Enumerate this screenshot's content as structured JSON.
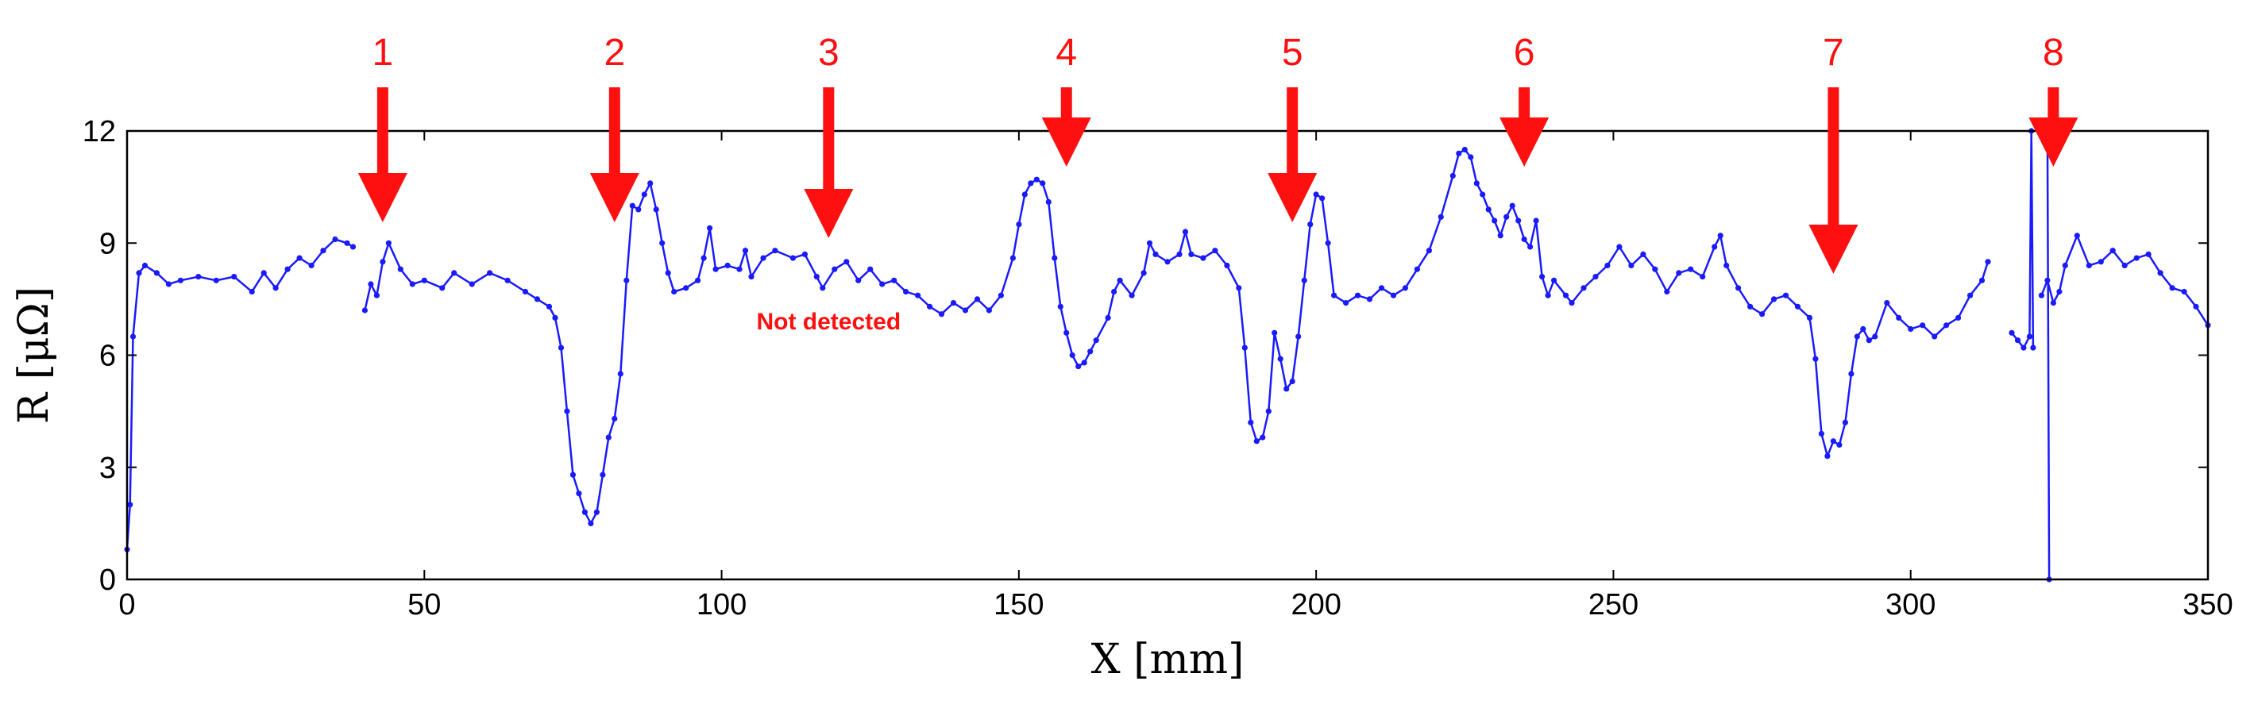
{
  "chart_data": {
    "type": "line",
    "xlabel": "X [mm]",
    "ylabel": "R [μΩ]",
    "xlim": [
      0,
      350
    ],
    "ylim": [
      0,
      12
    ],
    "xticks": [
      0,
      50,
      100,
      150,
      200,
      250,
      300,
      350
    ],
    "yticks": [
      0,
      3,
      6,
      9,
      12
    ],
    "grid": false,
    "line_color": "#1a1aff",
    "series": [
      {
        "segments": [
          [
            [
              0,
              0.8
            ],
            [
              0.5,
              2.0
            ],
            [
              1,
              6.5
            ],
            [
              2,
              8.2
            ],
            [
              3,
              8.4
            ],
            [
              5,
              8.2
            ],
            [
              7,
              7.9
            ],
            [
              9,
              8.0
            ],
            [
              12,
              8.1
            ],
            [
              15,
              8.0
            ],
            [
              18,
              8.1
            ],
            [
              21,
              7.7
            ],
            [
              23,
              8.2
            ],
            [
              25,
              7.8
            ],
            [
              27,
              8.3
            ],
            [
              29,
              8.6
            ],
            [
              31,
              8.4
            ],
            [
              33,
              8.8
            ],
            [
              35,
              9.1
            ],
            [
              37,
              9.0
            ],
            [
              38,
              8.9
            ]
          ],
          [
            [
              40,
              7.2
            ],
            [
              41,
              7.9
            ],
            [
              42,
              7.6
            ],
            [
              43,
              8.5
            ],
            [
              44,
              9.0
            ],
            [
              46,
              8.3
            ],
            [
              48,
              7.9
            ],
            [
              50,
              8.0
            ],
            [
              53,
              7.8
            ],
            [
              55,
              8.2
            ],
            [
              58,
              7.9
            ],
            [
              61,
              8.2
            ],
            [
              64,
              8.0
            ],
            [
              67,
              7.7
            ],
            [
              69,
              7.5
            ],
            [
              71,
              7.3
            ],
            [
              72,
              7.0
            ],
            [
              73,
              6.2
            ],
            [
              74,
              4.5
            ],
            [
              75,
              2.8
            ],
            [
              76,
              2.3
            ],
            [
              77,
              1.8
            ],
            [
              78,
              1.5
            ],
            [
              79,
              1.8
            ],
            [
              80,
              2.8
            ],
            [
              81,
              3.8
            ],
            [
              82,
              4.3
            ],
            [
              83,
              5.5
            ],
            [
              84,
              8.0
            ],
            [
              85,
              10.0
            ],
            [
              86,
              9.9
            ],
            [
              87,
              10.3
            ],
            [
              88,
              10.6
            ],
            [
              89,
              9.9
            ],
            [
              90,
              9.0
            ],
            [
              91,
              8.2
            ],
            [
              92,
              7.7
            ],
            [
              94,
              7.8
            ],
            [
              96,
              8.0
            ],
            [
              97,
              8.6
            ],
            [
              98,
              9.4
            ],
            [
              99,
              8.3
            ],
            [
              101,
              8.4
            ],
            [
              103,
              8.3
            ],
            [
              104,
              8.8
            ],
            [
              105,
              8.1
            ],
            [
              107,
              8.6
            ],
            [
              109,
              8.8
            ],
            [
              112,
              8.6
            ],
            [
              114,
              8.7
            ],
            [
              116,
              8.1
            ],
            [
              117,
              7.8
            ],
            [
              119,
              8.3
            ],
            [
              121,
              8.5
            ],
            [
              123,
              8.0
            ],
            [
              125,
              8.3
            ],
            [
              127,
              7.9
            ],
            [
              129,
              8.0
            ],
            [
              131,
              7.7
            ],
            [
              133,
              7.6
            ],
            [
              135,
              7.3
            ],
            [
              137,
              7.1
            ],
            [
              139,
              7.4
            ],
            [
              141,
              7.2
            ],
            [
              143,
              7.5
            ],
            [
              145,
              7.2
            ],
            [
              147,
              7.6
            ],
            [
              149,
              8.6
            ],
            [
              150,
              9.5
            ],
            [
              151,
              10.3
            ],
            [
              152,
              10.6
            ],
            [
              153,
              10.7
            ],
            [
              154,
              10.6
            ],
            [
              155,
              10.1
            ],
            [
              156,
              8.6
            ],
            [
              157,
              7.3
            ],
            [
              158,
              6.6
            ],
            [
              159,
              6.0
            ],
            [
              160,
              5.7
            ],
            [
              161,
              5.8
            ],
            [
              162,
              6.1
            ],
            [
              163,
              6.4
            ],
            [
              165,
              7.0
            ],
            [
              166,
              7.7
            ],
            [
              167,
              8.0
            ],
            [
              169,
              7.6
            ],
            [
              171,
              8.2
            ],
            [
              172,
              9.0
            ],
            [
              173,
              8.7
            ],
            [
              175,
              8.5
            ],
            [
              177,
              8.7
            ],
            [
              178,
              9.3
            ],
            [
              179,
              8.7
            ],
            [
              181,
              8.6
            ],
            [
              183,
              8.8
            ],
            [
              185,
              8.4
            ],
            [
              187,
              7.8
            ],
            [
              188,
              6.2
            ],
            [
              189,
              4.2
            ],
            [
              190,
              3.7
            ],
            [
              191,
              3.8
            ],
            [
              192,
              4.5
            ],
            [
              193,
              6.6
            ],
            [
              194,
              5.9
            ],
            [
              195,
              5.1
            ],
            [
              196,
              5.3
            ],
            [
              197,
              6.5
            ],
            [
              198,
              8.0
            ],
            [
              199,
              9.5
            ],
            [
              200,
              10.3
            ],
            [
              201,
              10.2
            ],
            [
              202,
              9.0
            ],
            [
              203,
              7.6
            ],
            [
              205,
              7.4
            ],
            [
              207,
              7.6
            ],
            [
              209,
              7.5
            ],
            [
              211,
              7.8
            ],
            [
              213,
              7.6
            ],
            [
              215,
              7.8
            ],
            [
              217,
              8.3
            ],
            [
              219,
              8.8
            ],
            [
              221,
              9.7
            ],
            [
              223,
              10.8
            ],
            [
              224,
              11.4
            ],
            [
              225,
              11.5
            ],
            [
              226,
              11.3
            ],
            [
              227,
              10.6
            ],
            [
              228,
              10.3
            ],
            [
              229,
              9.9
            ],
            [
              230,
              9.6
            ],
            [
              231,
              9.2
            ],
            [
              232,
              9.7
            ],
            [
              233,
              10.0
            ],
            [
              234,
              9.6
            ],
            [
              235,
              9.1
            ],
            [
              236,
              8.9
            ],
            [
              237,
              9.6
            ],
            [
              238,
              8.1
            ],
            [
              239,
              7.6
            ],
            [
              240,
              8.0
            ],
            [
              242,
              7.6
            ],
            [
              243,
              7.4
            ],
            [
              245,
              7.8
            ],
            [
              247,
              8.1
            ],
            [
              249,
              8.4
            ],
            [
              251,
              8.9
            ],
            [
              253,
              8.4
            ],
            [
              255,
              8.7
            ],
            [
              257,
              8.3
            ],
            [
              259,
              7.7
            ],
            [
              261,
              8.2
            ],
            [
              263,
              8.3
            ],
            [
              265,
              8.1
            ],
            [
              267,
              8.9
            ],
            [
              268,
              9.2
            ],
            [
              269,
              8.4
            ],
            [
              271,
              7.8
            ],
            [
              273,
              7.3
            ],
            [
              275,
              7.1
            ],
            [
              277,
              7.5
            ],
            [
              279,
              7.6
            ],
            [
              281,
              7.3
            ],
            [
              283,
              7.0
            ],
            [
              284,
              5.9
            ],
            [
              285,
              3.9
            ],
            [
              286,
              3.3
            ],
            [
              287,
              3.7
            ],
            [
              288,
              3.6
            ],
            [
              289,
              4.2
            ],
            [
              290,
              5.5
            ],
            [
              291,
              6.5
            ],
            [
              292,
              6.7
            ],
            [
              293,
              6.4
            ],
            [
              294,
              6.5
            ],
            [
              296,
              7.4
            ],
            [
              298,
              7.0
            ],
            [
              300,
              6.7
            ],
            [
              302,
              6.8
            ],
            [
              304,
              6.5
            ],
            [
              306,
              6.8
            ],
            [
              308,
              7.0
            ],
            [
              310,
              7.6
            ],
            [
              312,
              8.0
            ],
            [
              313,
              8.5
            ]
          ],
          [
            [
              317,
              6.6
            ],
            [
              318,
              6.4
            ],
            [
              319,
              6.2
            ],
            [
              320,
              6.5
            ],
            [
              320.3,
              12.0
            ],
            [
              320.6,
              6.2
            ]
          ],
          [
            [
              322,
              7.6
            ],
            [
              323,
              8.0
            ],
            [
              324,
              7.4
            ],
            [
              325,
              7.7
            ],
            [
              326,
              8.4
            ],
            [
              328,
              9.2
            ],
            [
              330,
              8.4
            ],
            [
              332,
              8.5
            ],
            [
              334,
              8.8
            ],
            [
              336,
              8.4
            ],
            [
              338,
              8.6
            ],
            [
              340,
              8.7
            ],
            [
              342,
              8.2
            ],
            [
              344,
              7.8
            ],
            [
              346,
              7.7
            ],
            [
              348,
              7.3
            ],
            [
              350,
              6.8
            ]
          ],
          [
            [
              323,
              12.0
            ],
            [
              323.3,
              0
            ]
          ]
        ]
      }
    ],
    "annotations": [
      {
        "label": "1",
        "x": 43
      },
      {
        "label": "2",
        "x": 82
      },
      {
        "label": "3",
        "x": 118,
        "note": "Not detected"
      },
      {
        "label": "4",
        "x": 158
      },
      {
        "label": "5",
        "x": 196
      },
      {
        "label": "6",
        "x": 235
      },
      {
        "label": "7",
        "x": 287
      },
      {
        "label": "8",
        "x": 324
      }
    ],
    "annotation_color": "#ff1010"
  }
}
